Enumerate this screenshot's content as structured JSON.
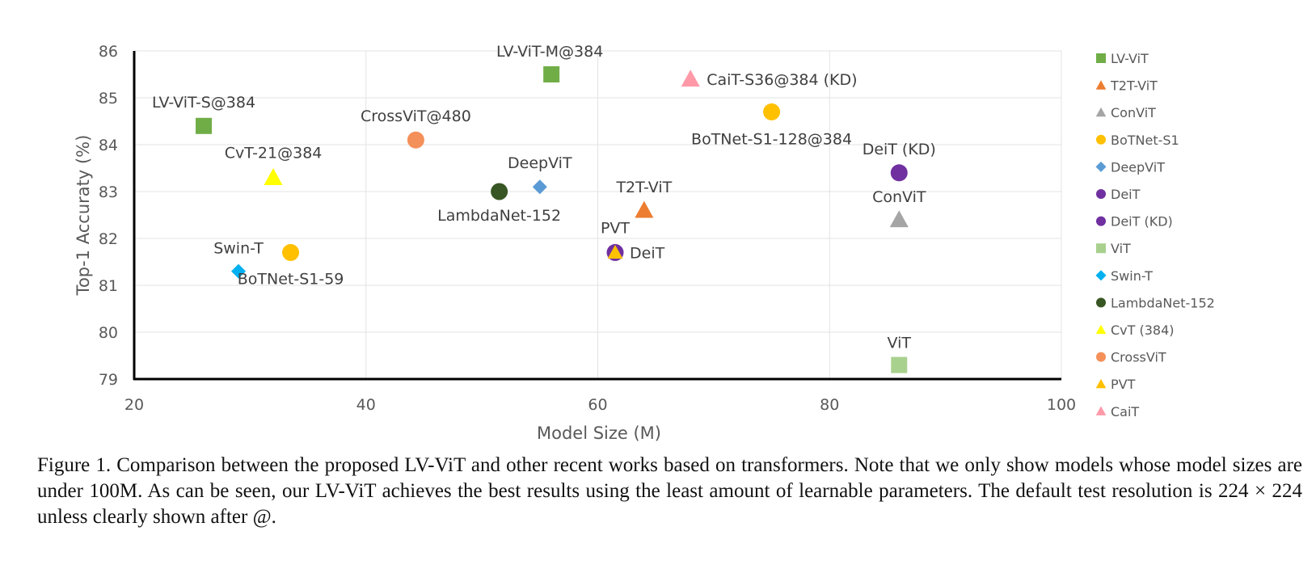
{
  "chart_data": {
    "type": "scatter",
    "xlabel": "Model Size (M)",
    "ylabel": "Top-1 Accuraty (%)",
    "xlim": [
      20,
      100
    ],
    "ylim": [
      79,
      86
    ],
    "x_ticks": [
      "20",
      "40",
      "60",
      "80",
      "100"
    ],
    "y_ticks": [
      "79",
      "80",
      "81",
      "82",
      "83",
      "84",
      "85",
      "86"
    ],
    "grid": true,
    "legend_position": "right",
    "series": [
      {
        "name": "LV-ViT",
        "marker": "square",
        "color": "#70ad47",
        "points": [
          {
            "x": 26,
            "y": 84.4,
            "label": "LV-ViT-S@384"
          },
          {
            "x": 56,
            "y": 85.5,
            "label": "LV-ViT-M@384"
          }
        ]
      },
      {
        "name": "T2T-ViT",
        "marker": "triangle",
        "color": "#ed7d31",
        "points": [
          {
            "x": 64,
            "y": 82.6,
            "label": "T2T-ViT"
          }
        ]
      },
      {
        "name": "ConViT",
        "marker": "triangle",
        "color": "#a5a5a5",
        "points": [
          {
            "x": 86,
            "y": 82.4,
            "label": "ConViT"
          }
        ]
      },
      {
        "name": "BoTNet-S1",
        "marker": "circle",
        "color": "#ffc000",
        "points": [
          {
            "x": 33.5,
            "y": 81.7,
            "label": "BoTNet-S1-59"
          },
          {
            "x": 75,
            "y": 84.7,
            "label": "BoTNet-S1-128@384"
          }
        ]
      },
      {
        "name": "DeepViT",
        "marker": "diamond",
        "color": "#5b9bd5",
        "points": [
          {
            "x": 55,
            "y": 83.1,
            "label": "DeepViT"
          }
        ]
      },
      {
        "name": "DeiT",
        "marker": "circle",
        "color": "#7030a0",
        "points": [
          {
            "x": 61.5,
            "y": 81.7,
            "label": "DeiT"
          }
        ]
      },
      {
        "name": "DeiT (KD)",
        "marker": "circle",
        "color": "#7030a0",
        "points": [
          {
            "x": 86,
            "y": 83.4,
            "label": "DeiT (KD)"
          }
        ]
      },
      {
        "name": "ViT",
        "marker": "square",
        "color": "#a9d18e",
        "points": [
          {
            "x": 86,
            "y": 79.3,
            "label": "ViT"
          }
        ]
      },
      {
        "name": "Swin-T",
        "marker": "diamond",
        "color": "#00b0f0",
        "points": [
          {
            "x": 29,
            "y": 81.3,
            "label": "Swin-T"
          }
        ]
      },
      {
        "name": "LambdaNet-152",
        "marker": "circle",
        "color": "#375623",
        "points": [
          {
            "x": 51.5,
            "y": 83.0,
            "label": "LambdaNet-152"
          }
        ]
      },
      {
        "name": "CvT (384)",
        "marker": "triangle",
        "color": "#ffff00",
        "points": [
          {
            "x": 32,
            "y": 83.3,
            "label": "CvT-21@384"
          }
        ]
      },
      {
        "name": "CrossViT",
        "marker": "circle",
        "color": "#f4905a",
        "points": [
          {
            "x": 44.3,
            "y": 84.1,
            "label": "CrossViT@480"
          }
        ]
      },
      {
        "name": "PVT",
        "marker": "triangle",
        "color": "#ffc000",
        "points": [
          {
            "x": 61.5,
            "y": 81.7,
            "label": "PVT"
          }
        ]
      },
      {
        "name": "CaiT",
        "marker": "triangle",
        "color": "#ff99a8",
        "points": [
          {
            "x": 68,
            "y": 85.4,
            "label": "CaiT-S36@384 (KD)"
          }
        ]
      }
    ]
  },
  "caption": {
    "text": "Figure 1. Comparison between the proposed LV-ViT and other recent works based on transformers. Note that we only show models whose model sizes are under 100M. As can be seen, our LV-ViT achieves the best results using the least amount of learnable parameters.  The default test resolution is 224 × 224 unless clearly shown after @."
  }
}
